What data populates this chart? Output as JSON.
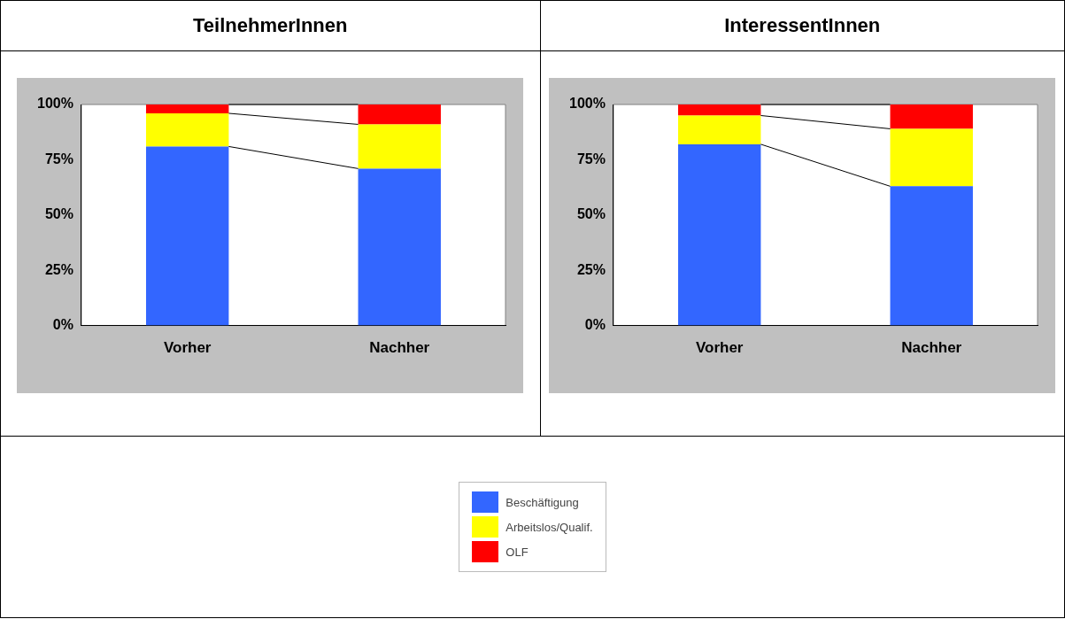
{
  "chart_data": [
    {
      "type": "bar",
      "title": "TeilnehmerInnen",
      "categories": [
        "Vorher",
        "Nachher"
      ],
      "stacked": true,
      "ylim": [
        0,
        100
      ],
      "yticks": [
        {
          "value": 0,
          "label": "0%"
        },
        {
          "value": 25,
          "label": "25%"
        },
        {
          "value": 50,
          "label": "50%"
        },
        {
          "value": 75,
          "label": "75%"
        },
        {
          "value": 100,
          "label": "100%"
        }
      ],
      "legend": "bottom",
      "series": [
        {
          "name": "Beschäftigung",
          "color": "#3366ff",
          "values": [
            81,
            71
          ]
        },
        {
          "name": "Arbeitslos/Qualif.",
          "color": "#ffff00",
          "values": [
            15,
            20
          ]
        },
        {
          "name": "OLF",
          "color": "#ff0000",
          "values": [
            4,
            9
          ]
        }
      ]
    },
    {
      "type": "bar",
      "title": "InteressentInnen",
      "categories": [
        "Vorher",
        "Nachher"
      ],
      "stacked": true,
      "ylim": [
        0,
        100
      ],
      "yticks": [
        {
          "value": 0,
          "label": "0%"
        },
        {
          "value": 25,
          "label": "25%"
        },
        {
          "value": 50,
          "label": "50%"
        },
        {
          "value": 75,
          "label": "75%"
        },
        {
          "value": 100,
          "label": "100%"
        }
      ],
      "series": [
        {
          "color": "#3366ff",
          "values": [
            82,
            63
          ]
        },
        {
          "color": "#ffff00",
          "values": [
            13,
            26
          ]
        },
        {
          "color": "#ff0000",
          "values": [
            5,
            11
          ]
        }
      ]
    }
  ]
}
